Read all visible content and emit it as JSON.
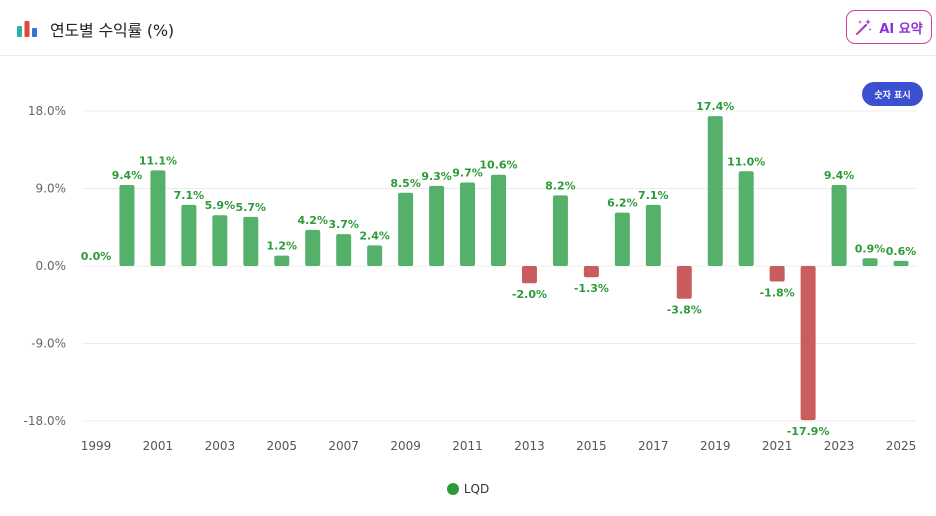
{
  "header": {
    "title": "연도별 수익률 (%)",
    "ai_button_label": "AI 요약",
    "show_values_label": "숫자 표시"
  },
  "colors": {
    "positive": "#55b06a",
    "negative": "#c95d5d",
    "label_positive": "#2d9a3a",
    "label_negative": "#2d9a3a",
    "legend": "#2d9a3a",
    "grid": "#ececec"
  },
  "chart_data": {
    "type": "bar",
    "categories": [
      "1999",
      "2000",
      "2001",
      "2002",
      "2003",
      "2004",
      "2005",
      "2006",
      "2007",
      "2008",
      "2009",
      "2010",
      "2011",
      "2012",
      "2013",
      "2014",
      "2015",
      "2016",
      "2017",
      "2018",
      "2019",
      "2020",
      "2021",
      "2022",
      "2023",
      "2024",
      "2025"
    ],
    "x_tick_labels": [
      "1999",
      "2001",
      "2003",
      "2005",
      "2007",
      "2009",
      "2011",
      "2013",
      "2015",
      "2017",
      "2019",
      "2021",
      "2023",
      "2025"
    ],
    "series": [
      {
        "name": "LQD",
        "values": [
          0.0,
          9.4,
          11.1,
          7.1,
          5.9,
          5.7,
          1.2,
          4.2,
          3.7,
          2.4,
          8.5,
          9.3,
          9.7,
          10.6,
          -2.0,
          8.2,
          -1.3,
          6.2,
          7.1,
          -3.8,
          17.4,
          11.0,
          -1.8,
          -17.9,
          9.4,
          0.9,
          0.6
        ],
        "labels": [
          "0.0%",
          "9.4%",
          "11.1%",
          "7.1%",
          "5.9%",
          "5.7%",
          "1.2%",
          "4.2%",
          "3.7%",
          "2.4%",
          "8.5%",
          "9.3%",
          "9.7%",
          "10.6%",
          "-2.0%",
          "8.2%",
          "-1.3%",
          "6.2%",
          "7.1%",
          "-3.8%",
          "17.4%",
          "11.0%",
          "-1.8%",
          "-17.9%",
          "9.4%",
          "0.9%",
          "0.6%"
        ]
      }
    ],
    "y_ticks": [
      18,
      9,
      0,
      -9,
      -18
    ],
    "y_tick_labels": [
      "18.0%",
      "9.0%",
      "0.0%",
      "-9.0%",
      "-18.0%"
    ],
    "ylim": [
      -18,
      18
    ],
    "grid": true,
    "legend_position": "bottom-center"
  }
}
